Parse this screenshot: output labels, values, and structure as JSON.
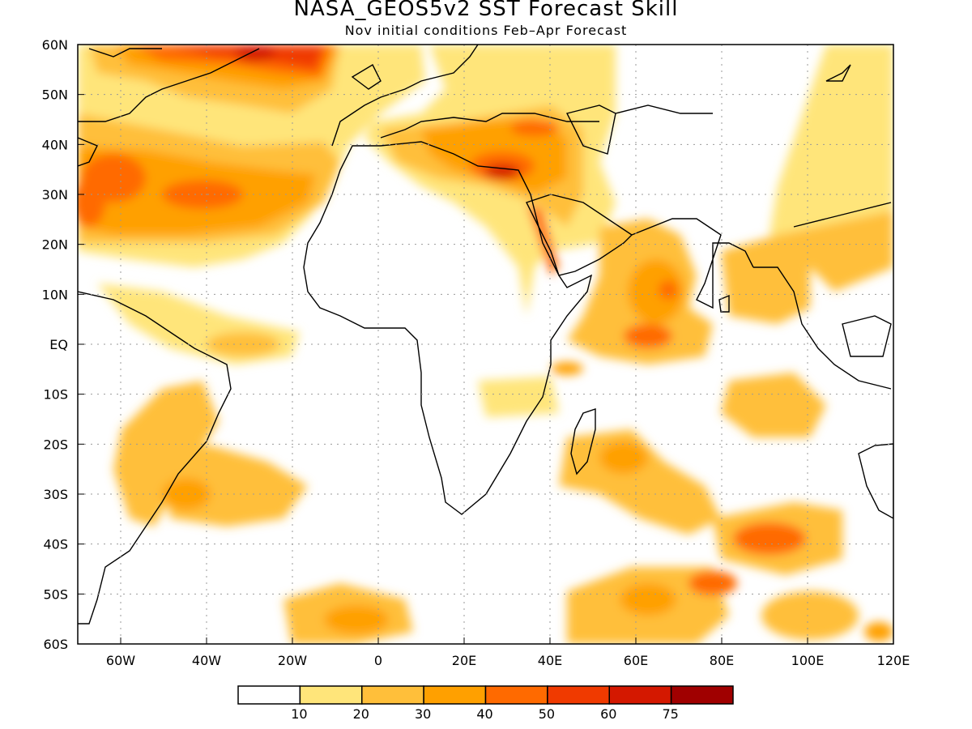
{
  "title": "NASA_GEOS5v2  SST  Forecast  Skill",
  "subtitle": "Nov  initial  conditions   Feb–Apr  Forecast",
  "map": {
    "lon_range": [
      -70,
      120
    ],
    "lat_range": [
      -60,
      60
    ],
    "lon_ticks": [
      {
        "value": -60,
        "label": "60W"
      },
      {
        "value": -40,
        "label": "40W"
      },
      {
        "value": -20,
        "label": "20W"
      },
      {
        "value": 0,
        "label": "0"
      },
      {
        "value": 20,
        "label": "20E"
      },
      {
        "value": 40,
        "label": "40E"
      },
      {
        "value": 60,
        "label": "60E"
      },
      {
        "value": 80,
        "label": "80E"
      },
      {
        "value": 100,
        "label": "100E"
      },
      {
        "value": 120,
        "label": "120E"
      }
    ],
    "lat_ticks": [
      {
        "value": 60,
        "label": "60N"
      },
      {
        "value": 50,
        "label": "50N"
      },
      {
        "value": 40,
        "label": "40N"
      },
      {
        "value": 30,
        "label": "30N"
      },
      {
        "value": 20,
        "label": "20N"
      },
      {
        "value": 10,
        "label": "10N"
      },
      {
        "value": 0,
        "label": "EQ"
      },
      {
        "value": -10,
        "label": "10S"
      },
      {
        "value": -20,
        "label": "20S"
      },
      {
        "value": -30,
        "label": "30S"
      },
      {
        "value": -40,
        "label": "40S"
      },
      {
        "value": -50,
        "label": "50S"
      },
      {
        "value": -60,
        "label": "60S"
      }
    ]
  },
  "colorbar": {
    "bins": [
      "#ffffff",
      "#ffe57a",
      "#ffbf3a",
      "#ffa000",
      "#ff6a00",
      "#f03a00",
      "#d41800",
      "#a00000"
    ],
    "labels": [
      "10",
      "20",
      "30",
      "40",
      "50",
      "60",
      "75"
    ]
  }
}
